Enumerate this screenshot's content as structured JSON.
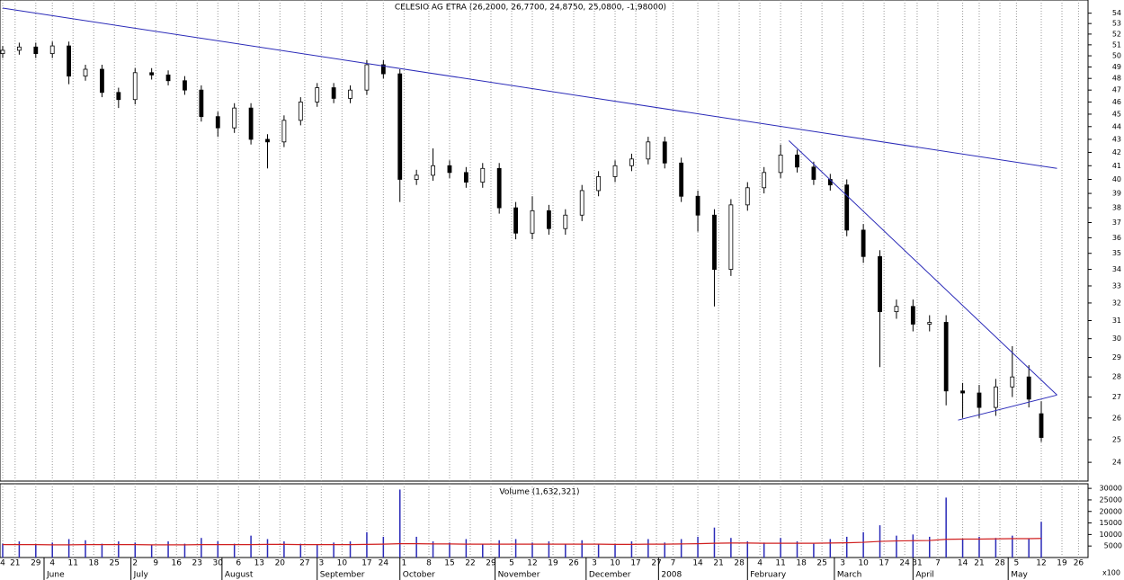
{
  "chart_data": {
    "type": "candlestick",
    "title": "CELESIO AG  ETRA (26,2000, 26,7700, 24,8750, 25,0800, -1,98000)",
    "ylog": true,
    "ylim": [
      23.2,
      55.3
    ],
    "yticks": [
      24,
      25,
      26,
      27,
      28,
      29,
      30,
      31,
      32,
      33,
      34,
      35,
      36,
      37,
      38,
      39,
      40,
      41,
      42,
      43,
      44,
      45,
      46,
      47,
      48,
      49,
      50,
      51,
      52,
      53,
      54
    ],
    "xlim": [
      -0.65,
      262.3
    ],
    "x": [
      0,
      4,
      8,
      12,
      16,
      20,
      24,
      28,
      32,
      36,
      40,
      44,
      48,
      52,
      56,
      60,
      64,
      68,
      72,
      76,
      80,
      84,
      88,
      92,
      96,
      100,
      104,
      108,
      112,
      116,
      120,
      124,
      128,
      132,
      136,
      140,
      144,
      148,
      152,
      156,
      160,
      164,
      168,
      172,
      176,
      180,
      184,
      188,
      192,
      196,
      200,
      204,
      208,
      212,
      216,
      220,
      224,
      228,
      232,
      236,
      240,
      244,
      248,
      251
    ],
    "open": [
      50.2,
      50.5,
      50.8,
      50.2,
      50.9,
      48.2,
      48.8,
      46.8,
      46.2,
      48.5,
      48.3,
      47.8,
      47.0,
      44.8,
      43.9,
      45.5,
      43.0,
      42.8,
      44.5,
      46.0,
      47.2,
      46.3,
      47.0,
      49.2,
      48.4,
      40.0,
      40.3,
      41.0,
      40.5,
      39.8,
      40.8,
      38.0,
      36.3,
      37.8,
      36.6,
      37.5,
      39.2,
      40.2,
      41.0,
      41.5,
      42.8,
      41.2,
      38.8,
      37.5,
      34.0,
      38.2,
      39.4,
      40.5,
      41.8,
      40.9,
      40.0,
      39.6,
      36.5,
      34.8,
      31.5,
      31.8,
      30.8,
      30.9,
      27.3,
      27.2,
      26.5,
      27.5,
      28.0,
      26.2
    ],
    "high": [
      50.9,
      51.2,
      51.2,
      51.3,
      51.3,
      49.2,
      49.2,
      47.2,
      48.9,
      48.9,
      48.7,
      48.2,
      47.4,
      45.2,
      45.9,
      45.9,
      43.4,
      44.9,
      46.4,
      47.6,
      47.6,
      47.4,
      49.6,
      49.6,
      48.8,
      40.7,
      42.3,
      41.4,
      40.9,
      41.2,
      41.2,
      38.4,
      38.8,
      38.2,
      37.9,
      39.6,
      40.6,
      41.4,
      41.9,
      43.2,
      43.2,
      41.6,
      39.2,
      37.9,
      38.6,
      39.8,
      40.9,
      42.6,
      42.2,
      41.3,
      40.4,
      40.0,
      36.9,
      35.2,
      32.2,
      32.2,
      31.3,
      31.3,
      27.7,
      27.6,
      27.9,
      29.6,
      28.6,
      26.8
    ],
    "low": [
      49.8,
      50.1,
      49.8,
      49.8,
      47.5,
      47.8,
      46.4,
      45.5,
      45.8,
      47.9,
      47.4,
      46.6,
      44.4,
      43.2,
      43.5,
      42.6,
      40.8,
      42.4,
      44.1,
      45.6,
      45.9,
      45.9,
      46.6,
      48.0,
      38.4,
      39.6,
      39.9,
      40.1,
      39.4,
      39.4,
      37.6,
      35.9,
      35.9,
      36.2,
      36.2,
      37.1,
      38.8,
      39.8,
      40.6,
      41.1,
      40.8,
      38.4,
      36.4,
      31.8,
      33.6,
      37.8,
      39.0,
      40.1,
      40.5,
      39.6,
      39.2,
      36.1,
      34.4,
      28.5,
      31.1,
      30.4,
      30.4,
      26.6,
      26.0,
      26.0,
      26.1,
      27.0,
      26.5,
      24.9
    ],
    "close": [
      50.5,
      50.8,
      50.2,
      50.9,
      48.2,
      48.8,
      46.8,
      46.2,
      48.5,
      48.3,
      47.8,
      47.0,
      44.8,
      43.9,
      45.5,
      43.0,
      42.8,
      44.5,
      46.0,
      47.2,
      46.3,
      47.0,
      49.2,
      48.4,
      40.0,
      40.3,
      41.0,
      40.5,
      39.8,
      40.8,
      38.0,
      36.3,
      37.8,
      36.6,
      37.5,
      39.2,
      40.2,
      41.0,
      41.5,
      42.8,
      41.2,
      38.8,
      37.5,
      34.0,
      38.2,
      39.4,
      40.5,
      41.8,
      40.9,
      40.0,
      39.6,
      36.5,
      34.8,
      31.5,
      31.8,
      30.8,
      30.9,
      27.3,
      27.2,
      26.5,
      27.5,
      28.0,
      26.9,
      25.1
    ],
    "up_color": "#ffffff",
    "down_color": "#000000",
    "trendlines": [
      {
        "color": "#2a2ab8",
        "x": [
          0,
          254.8
        ],
        "y": [
          54.5,
          40.8
        ]
      },
      {
        "color": "#2a2ab8",
        "x": [
          190,
          254.8
        ],
        "y": [
          42.9,
          27.1
        ]
      },
      {
        "color": "#2a2ab8",
        "x": [
          230.9,
          254.8
        ],
        "y": [
          25.9,
          27.1
        ]
      }
    ],
    "volume_title": "Volume (1,632,321)",
    "volume_unit_label": "x100",
    "volume_ylim": [
      0,
      32000
    ],
    "volume_yticks": [
      5000,
      10000,
      15000,
      20000,
      25000,
      30000
    ],
    "volume_color": "#2a2ab8",
    "volume": [
      6000,
      7000,
      5500,
      6500,
      8000,
      7500,
      6000,
      7000,
      6500,
      5500,
      7000,
      6000,
      8500,
      7000,
      6000,
      9500,
      8000,
      7000,
      6000,
      5500,
      6500,
      7000,
      11000,
      9000,
      29500,
      9000,
      7000,
      6500,
      8000,
      6000,
      7500,
      8000,
      6500,
      7000,
      6000,
      7500,
      6000,
      5500,
      7000,
      8000,
      6500,
      8000,
      9000,
      13000,
      8500,
      7000,
      6500,
      8500,
      7000,
      6000,
      8000,
      9000,
      11000,
      14000,
      9500,
      10000,
      9000,
      26000,
      8000,
      9000,
      8500,
      9500,
      8000,
      15500
    ],
    "volume_ma_color": "#d02020",
    "volume_ma": [
      5600,
      5600,
      5600,
      5500,
      5500,
      5600,
      5600,
      5600,
      5600,
      5500,
      5500,
      5500,
      5600,
      5600,
      5600,
      5600,
      5700,
      5700,
      5600,
      5600,
      5600,
      5600,
      5700,
      5800,
      6000,
      6000,
      5900,
      5900,
      5800,
      5800,
      5800,
      5800,
      5800,
      5800,
      5800,
      5800,
      5800,
      5700,
      5700,
      5800,
      5800,
      5900,
      6000,
      6200,
      6300,
      6300,
      6200,
      6200,
      6200,
      6200,
      6300,
      6400,
      6600,
      7000,
      7200,
      7300,
      7400,
      7900,
      8000,
      8000,
      8100,
      8200,
      8200,
      8300
    ],
    "xticks": [
      {
        "value": 0,
        "label": "4"
      },
      {
        "value": 3,
        "label": "21"
      },
      {
        "value": 8,
        "label": "29"
      },
      {
        "value": 12,
        "label": "4"
      },
      {
        "value": 17,
        "label": "11"
      },
      {
        "value": 22,
        "label": "18"
      },
      {
        "value": 27,
        "label": "25"
      },
      {
        "value": 32,
        "label": "2"
      },
      {
        "value": 37,
        "label": "9"
      },
      {
        "value": 42,
        "label": "16"
      },
      {
        "value": 47,
        "label": "23"
      },
      {
        "value": 52,
        "label": "30"
      },
      {
        "value": 57,
        "label": "6"
      },
      {
        "value": 62,
        "label": "13"
      },
      {
        "value": 67,
        "label": "20"
      },
      {
        "value": 73,
        "label": "27"
      },
      {
        "value": 77,
        "label": "3"
      },
      {
        "value": 82,
        "label": "10"
      },
      {
        "value": 88,
        "label": "17"
      },
      {
        "value": 92,
        "label": "24"
      },
      {
        "value": 97,
        "label": "1"
      },
      {
        "value": 103,
        "label": "8"
      },
      {
        "value": 108,
        "label": "15"
      },
      {
        "value": 113,
        "label": "22"
      },
      {
        "value": 118,
        "label": "29"
      },
      {
        "value": 123,
        "label": "5"
      },
      {
        "value": 128,
        "label": "12"
      },
      {
        "value": 133,
        "label": "19"
      },
      {
        "value": 138,
        "label": "26"
      },
      {
        "value": 143,
        "label": "3"
      },
      {
        "value": 148,
        "label": "10"
      },
      {
        "value": 153,
        "label": "17"
      },
      {
        "value": 158,
        "label": "27"
      },
      {
        "value": 162,
        "label": "7"
      },
      {
        "value": 168,
        "label": "14"
      },
      {
        "value": 173,
        "label": "21"
      },
      {
        "value": 178,
        "label": "28"
      },
      {
        "value": 183,
        "label": "4"
      },
      {
        "value": 188,
        "label": "11"
      },
      {
        "value": 193,
        "label": "18"
      },
      {
        "value": 198,
        "label": "25"
      },
      {
        "value": 203,
        "label": "3"
      },
      {
        "value": 208,
        "label": "10"
      },
      {
        "value": 213,
        "label": "17"
      },
      {
        "value": 218,
        "label": "24"
      },
      {
        "value": 221,
        "label": "31"
      },
      {
        "value": 226,
        "label": "7"
      },
      {
        "value": 232,
        "label": "14"
      },
      {
        "value": 236,
        "label": "21"
      },
      {
        "value": 241,
        "label": "28"
      },
      {
        "value": 245,
        "label": "5"
      },
      {
        "value": 251,
        "label": "12"
      },
      {
        "value": 256,
        "label": "19"
      },
      {
        "value": 260,
        "label": "26"
      }
    ],
    "months": [
      {
        "value": 10,
        "label": "June"
      },
      {
        "value": 31,
        "label": "July"
      },
      {
        "value": 53,
        "label": "August"
      },
      {
        "value": 76,
        "label": "September"
      },
      {
        "value": 96,
        "label": "October"
      },
      {
        "value": 119,
        "label": "November"
      },
      {
        "value": 141,
        "label": "December"
      },
      {
        "value": 158.5,
        "label": "2008"
      },
      {
        "value": 180,
        "label": "February"
      },
      {
        "value": 201,
        "label": "March"
      },
      {
        "value": 220,
        "label": "April"
      },
      {
        "value": 243,
        "label": "May"
      }
    ]
  }
}
